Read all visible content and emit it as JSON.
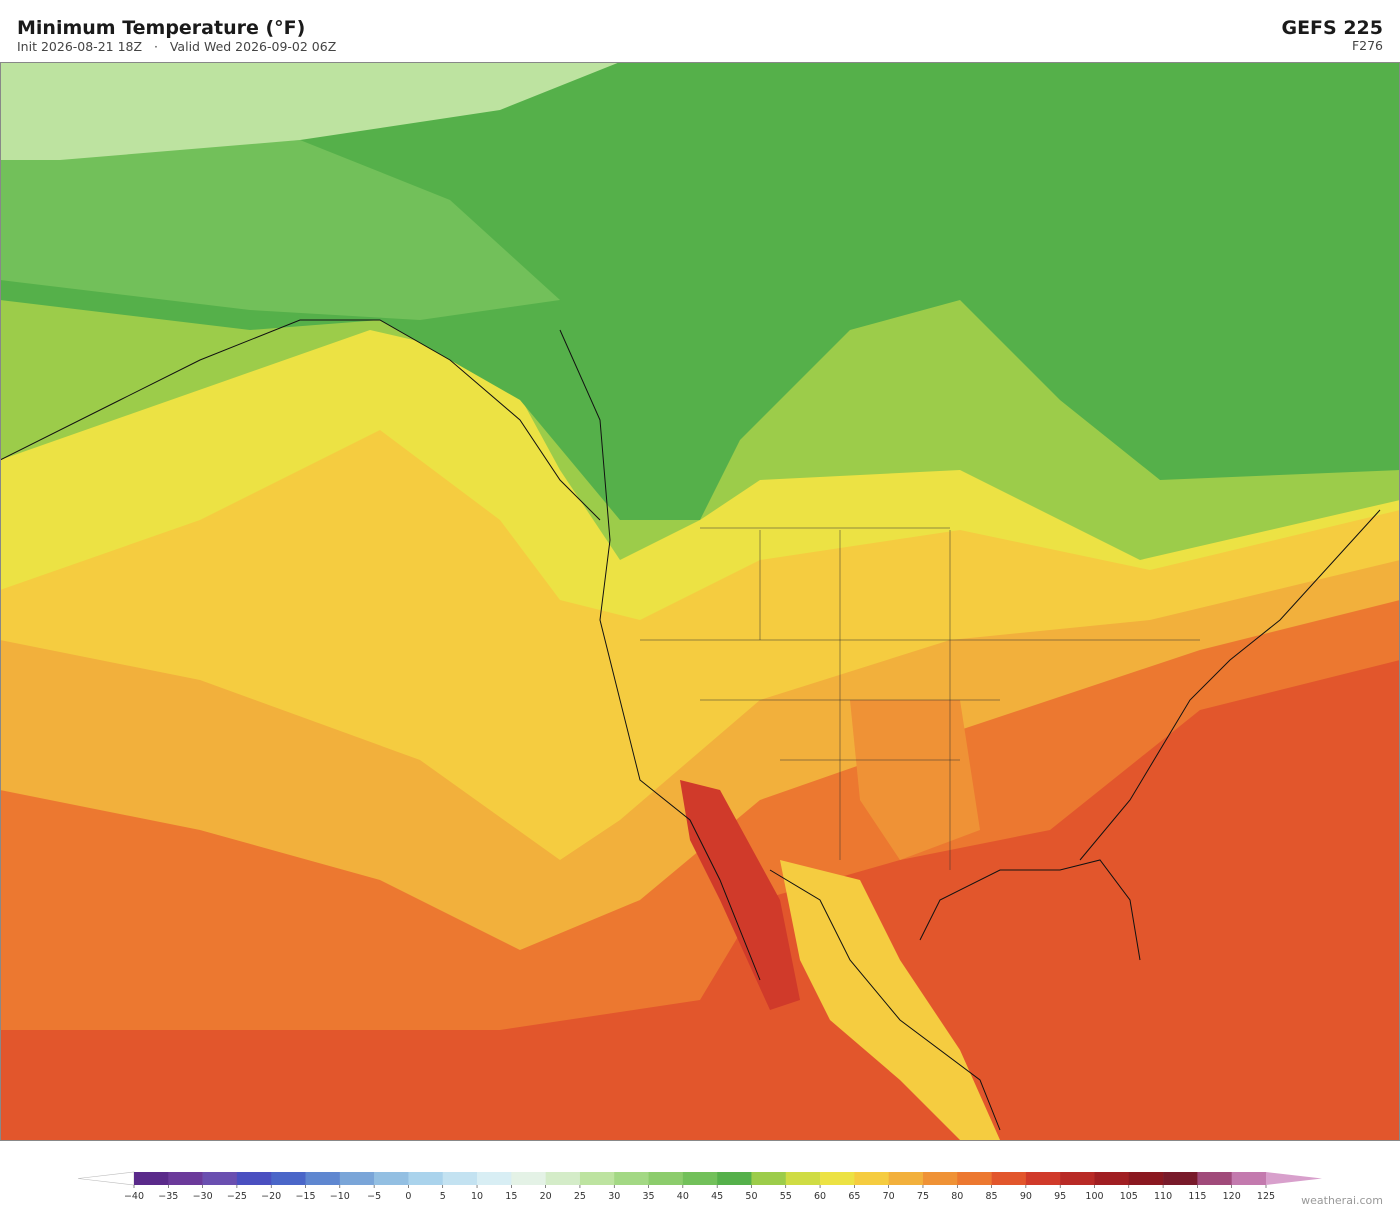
{
  "header": {
    "title": "Minimum Temperature  (°F)",
    "subtitle": "Init 2026-08-21 18Z   ·   Valid Wed 2026-09-02 06Z",
    "model": "GEFS  225",
    "forecast_hour": "F276"
  },
  "colorbar": {
    "ticks": [
      {
        "value": -40,
        "label": "−40"
      },
      {
        "value": -35,
        "label": "−35"
      },
      {
        "value": -30,
        "label": "−30"
      },
      {
        "value": -25,
        "label": "−25"
      },
      {
        "value": -20,
        "label": "−20"
      },
      {
        "value": -15,
        "label": "−15"
      },
      {
        "value": -10,
        "label": "−10"
      },
      {
        "value": -5,
        "label": "−5"
      },
      0,
      5,
      10,
      15,
      20,
      25,
      30,
      35,
      40,
      45,
      50,
      55,
      60,
      65,
      70,
      75,
      80,
      85,
      90,
      95,
      100,
      105,
      110,
      115,
      120,
      125
    ],
    "colors": [
      "#5a2a8a",
      "#6b3a9a",
      "#6a4fb0",
      "#4a4fc0",
      "#4a66c8",
      "#5f87d0",
      "#7aa5d8",
      "#93bfe2",
      "#aad3ec",
      "#c3e2f1",
      "#d8eef4",
      "#e4f2e6",
      "#d4ecc8",
      "#bde3a0",
      "#a3d884",
      "#8ccc6c",
      "#72c05a",
      "#55b04a",
      "#9ccc4a",
      "#cfdc44",
      "#ece244",
      "#f5cc40",
      "#f2b03c",
      "#ef9236",
      "#ec7830",
      "#e2562c",
      "#d03a2a",
      "#b82a26",
      "#a01e22",
      "#8a1820",
      "#781a2a",
      "#a04a7a",
      "#c37aae"
    ],
    "under_color": "#ffffff",
    "over_color": "#d8a0cc"
  },
  "footer": {
    "credit": "weatherai.com"
  }
}
